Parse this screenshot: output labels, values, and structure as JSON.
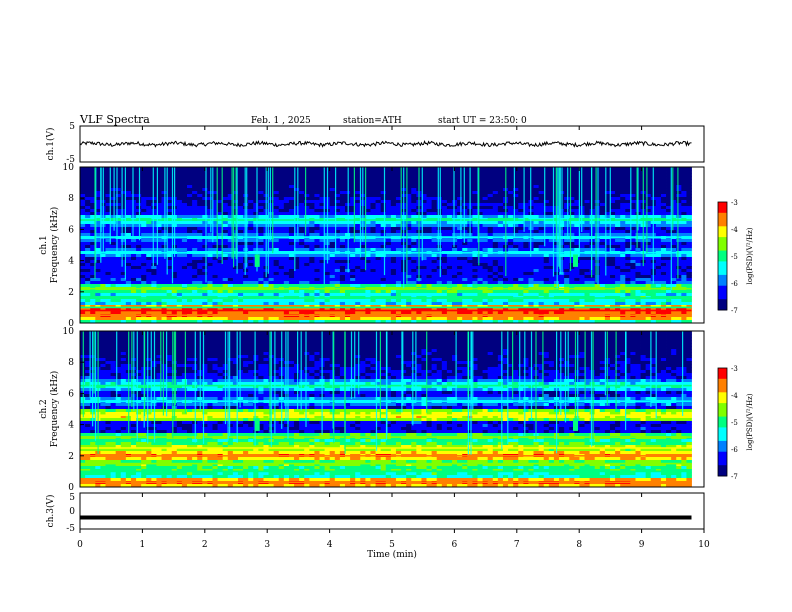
{
  "header": {
    "title": "VLF Spectra",
    "date": "Feb. 1 , 2025",
    "station": "station=ATH",
    "start": "start UT = 23:50: 0"
  },
  "chart_data": [
    {
      "type": "line",
      "panel": "ch1-waveform",
      "ylabel": "ch.1(V)",
      "ylim": [
        -5,
        5
      ],
      "y_ticks": [
        "5",
        "-5"
      ],
      "xlim": [
        0,
        10
      ],
      "baseline": 0,
      "amplitude_approx": 1,
      "x_end": 9.8
    },
    {
      "type": "heatmap",
      "panel": "ch1-spectrogram",
      "channel_label": "ch.1",
      "ylabel": "Frequency (kHz)",
      "ylim": [
        0,
        10
      ],
      "y_ticks": [
        "10",
        "8",
        "6",
        "4",
        "2",
        "0"
      ],
      "xlim": [
        0,
        10
      ],
      "x_end": 9.8,
      "colorbar": {
        "label": "log(PSD)(V²/Hz)",
        "range": [
          -7,
          -3
        ],
        "ticks": [
          "-3",
          "-4",
          "-5",
          "-6",
          "-7"
        ]
      },
      "bands_khz": [
        {
          "f": 0.5,
          "level": -3.5
        },
        {
          "f": 0.8,
          "level": -3.3
        },
        {
          "f": 1.0,
          "level": -5.0
        },
        {
          "f": 1.6,
          "level": -5.0
        },
        {
          "f": 2.2,
          "level": -4.6
        },
        {
          "f": 4.5,
          "level": -5.5
        },
        {
          "f": 5.5,
          "level": -5.6
        },
        {
          "f": 6.6,
          "level": -5.2
        }
      ],
      "bursts_min": [
        2.8,
        7.9
      ]
    },
    {
      "type": "heatmap",
      "panel": "ch2-spectrogram",
      "channel_label": "ch.2",
      "ylabel": "Frequency (kHz)",
      "ylim": [
        0,
        10
      ],
      "y_ticks": [
        "10",
        "8",
        "6",
        "4",
        "2",
        "0"
      ],
      "xlim": [
        0,
        10
      ],
      "x_end": 9.8,
      "colorbar": {
        "label": "log(PSD)(V²/Hz)",
        "range": [
          -7,
          -3
        ],
        "ticks": [
          "-3",
          "-4",
          "-5",
          "-6",
          "-7"
        ]
      },
      "bands_khz": [
        {
          "f": 0.3,
          "level": -3.5
        },
        {
          "f": 1.0,
          "level": -4.8
        },
        {
          "f": 1.5,
          "level": -4.5
        },
        {
          "f": 2.0,
          "level": -3.6
        },
        {
          "f": 2.5,
          "level": -4.3
        },
        {
          "f": 3.2,
          "level": -4.6
        },
        {
          "f": 4.6,
          "level": -4.0
        },
        {
          "f": 5.5,
          "level": -5.5
        },
        {
          "f": 6.5,
          "level": -5.2
        }
      ],
      "bursts_min": [
        2.8,
        7.9
      ]
    },
    {
      "type": "line",
      "panel": "ch3-waveform",
      "ylabel": "ch.3(V)",
      "ylim": [
        -5,
        5
      ],
      "y_ticks": [
        "5",
        "0",
        "-5"
      ],
      "xlim": [
        0,
        10
      ],
      "baseline": -1.8,
      "x_end": 9.8
    }
  ],
  "xaxis": {
    "label": "Time (min)",
    "ticks": [
      "0",
      "1",
      "2",
      "3",
      "4",
      "5",
      "6",
      "7",
      "8",
      "9",
      "10"
    ]
  },
  "colormap": [
    "#000080",
    "#0000ff",
    "#0080ff",
    "#00ffff",
    "#00ff80",
    "#80ff00",
    "#ffff00",
    "#ff8000",
    "#ff0000",
    "#ffffff"
  ]
}
